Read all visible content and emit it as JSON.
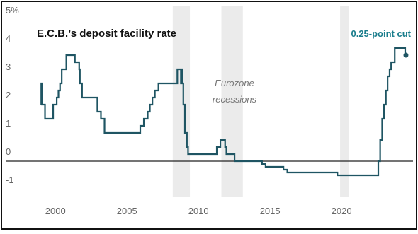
{
  "chart_data": {
    "type": "step-line",
    "title": "E.C.B.’s deposit facility rate",
    "annotation": "0.25-point cut",
    "recession_label": [
      "Eurozone",
      "recessions"
    ],
    "recessions": [
      [
        2008.2,
        2009.4
      ],
      [
        2011.6,
        2013.1
      ],
      [
        2019.9,
        2020.5
      ]
    ],
    "recession_color": "#ebebeb",
    "zero_line": true,
    "series": [
      {
        "name": "Deposit facility rate",
        "color": "#1f5563",
        "x": [
          1999.0,
          1999.01,
          1999.06,
          1999.27,
          1999.84,
          2000.09,
          2000.21,
          2000.32,
          2000.44,
          2000.76,
          2001.36,
          2001.66,
          2001.71,
          2001.86,
          2002.93,
          2003.18,
          2003.43,
          2005.93,
          2006.18,
          2006.45,
          2006.6,
          2006.78,
          2006.95,
          2007.2,
          2008.52,
          2008.77,
          2008.78,
          2008.87,
          2008.94,
          2009.05,
          2009.19,
          2009.27,
          2011.28,
          2011.53,
          2011.86,
          2011.95,
          2012.52,
          2014.44,
          2014.69,
          2015.94,
          2016.21,
          2019.71,
          2022.57,
          2022.7,
          2022.84,
          2022.97,
          2023.1,
          2023.22,
          2023.36,
          2023.47,
          2023.72,
          2024.45,
          2024.5
        ],
        "values": [
          2.0,
          2.75,
          2.0,
          1.5,
          2.0,
          2.25,
          2.5,
          2.75,
          3.25,
          3.75,
          3.5,
          3.25,
          2.75,
          2.25,
          1.75,
          1.5,
          1.0,
          1.25,
          1.5,
          1.75,
          2.0,
          2.25,
          2.5,
          2.75,
          3.25,
          2.75,
          3.25,
          2.75,
          2.0,
          1.0,
          0.5,
          0.25,
          0.5,
          0.75,
          0.5,
          0.25,
          0.0,
          -0.1,
          -0.2,
          -0.3,
          -0.4,
          -0.5,
          0.0,
          0.75,
          1.5,
          2.0,
          2.5,
          3.0,
          3.25,
          3.5,
          4.0,
          3.75,
          3.75
        ]
      }
    ],
    "xlim": [
      1998.6,
      2024.6
    ],
    "xticks": [
      2000,
      2005,
      2010,
      2015,
      2020
    ],
    "ylim": [
      -1.25,
      5
    ],
    "yticks": [
      {
        "value": 5,
        "label": "5%"
      },
      4,
      3,
      2,
      1,
      0,
      -1
    ],
    "annotation_color": "#1a7d8c"
  }
}
